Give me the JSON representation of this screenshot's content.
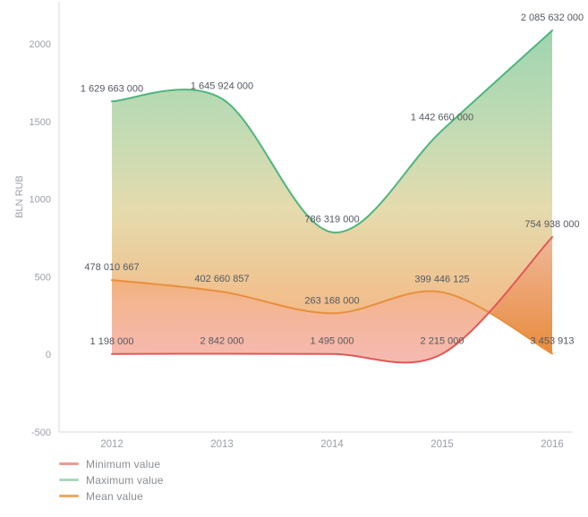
{
  "chart_data": {
    "type": "area",
    "title": "",
    "xlabel": "",
    "ylabel": "BLN RUB",
    "categories": [
      "2012",
      "2013",
      "2014",
      "2015",
      "2016"
    ],
    "yticks": [
      -500,
      0,
      500,
      1000,
      1500,
      2000
    ],
    "ylim": [
      -500,
      2300
    ],
    "grid": false,
    "legend_position": "bottom-left",
    "value_divisor_for_axis": 1000000,
    "series": [
      {
        "name": "Minimum value",
        "color": "#e25757",
        "legend_color": "#ea9b95",
        "values": [
          1198000,
          2842000,
          1495000,
          2215000,
          754938000
        ],
        "labels": [
          "1 198 000",
          "2 842 000",
          "1 495 000",
          "2 215 000",
          "754 938 000"
        ]
      },
      {
        "name": "Maximum value",
        "color": "#4fb57e",
        "legend_color": "#a9d9bb",
        "values": [
          1629663000,
          1645924000,
          786319000,
          1442660000,
          2085632000
        ],
        "labels": [
          "1 629 663 000",
          "1 645 924 000",
          "786 319 000",
          "1 442 660 000",
          "2 085 632 000"
        ]
      },
      {
        "name": "Mean value",
        "color": "#e88f3e",
        "legend_color": "#f0a763",
        "values": [
          478010667,
          402660857,
          263168000,
          399446125,
          3453913
        ],
        "labels": [
          "478 010 667",
          "402 660 857",
          "263 168 000",
          "399 446 125",
          "3 453 913"
        ]
      }
    ],
    "colors": {
      "axis_line": "#d9d9d9",
      "tick_label": "#9ba0a8",
      "value_label": "#545962",
      "band_max_mean_stops": [
        {
          "offset": "0%",
          "color": "rgba(110,192,138,0.68)"
        },
        {
          "offset": "30%",
          "color": "rgba(160,200,140,0.65)"
        },
        {
          "offset": "55%",
          "color": "rgba(215,200,130,0.65)"
        },
        {
          "offset": "80%",
          "color": "rgba(235,170,100,0.72)"
        },
        {
          "offset": "100%",
          "color": "rgba(237,150,90,0.75)"
        }
      ],
      "band_mean_min_stops": [
        {
          "offset": "0%",
          "color": "rgba(236,152,70,0.80)"
        },
        {
          "offset": "30%",
          "color": "rgba(238,150,95,0.70)"
        },
        {
          "offset": "100%",
          "color": "rgba(240,140,130,0.60)"
        }
      ],
      "band_min_mean_crossed_stops": [
        {
          "offset": "0%",
          "color": "rgba(240,160,140,0.50)"
        },
        {
          "offset": "100%",
          "color": "rgba(230,135,45,0.90)"
        }
      ]
    }
  },
  "legend": {
    "items": [
      {
        "label": "Minimum value"
      },
      {
        "label": "Maximum value"
      },
      {
        "label": "Mean value"
      }
    ]
  }
}
